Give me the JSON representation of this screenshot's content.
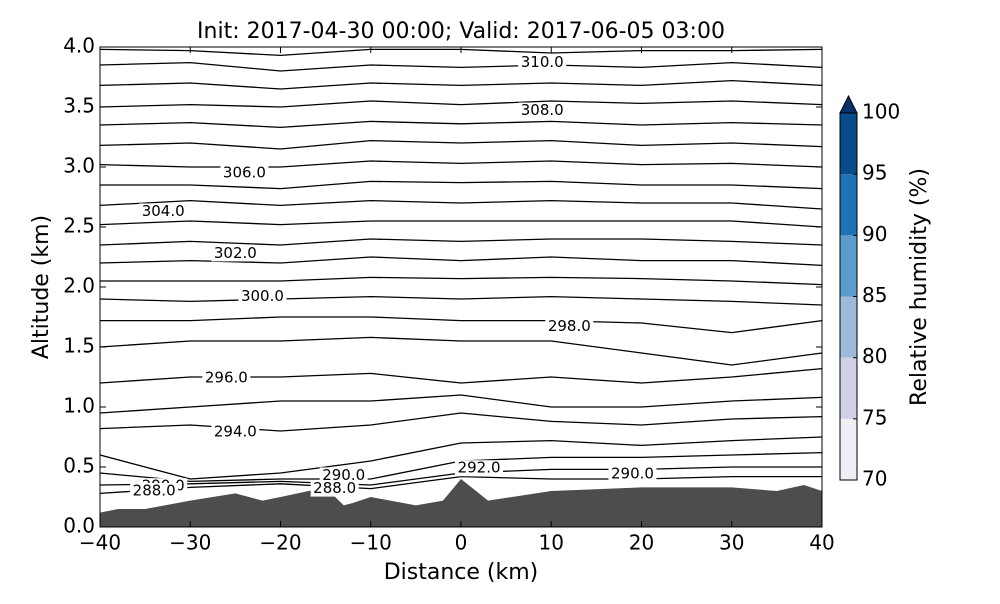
{
  "chart_data": {
    "type": "contour",
    "title": "Init: 2017-04-30 00:00; Valid: 2017-06-05 03:00",
    "xlabel": "Distance (km)",
    "ylabel": "Altitude (km)",
    "xlim": [
      -40,
      40
    ],
    "xticks": [
      {
        "value": -40,
        "label": "−40"
      },
      {
        "value": -30,
        "label": "−30"
      },
      {
        "value": -20,
        "label": "−20"
      },
      {
        "value": -10,
        "label": "−10"
      },
      0,
      10,
      20,
      30,
      40
    ],
    "ylim": [
      0,
      4
    ],
    "yticks": [
      {
        "value": 0,
        "label": "0.0"
      },
      {
        "value": 0.5,
        "label": "0.5"
      },
      {
        "value": 1,
        "label": "1.0"
      },
      {
        "value": 1.5,
        "label": "1.5"
      },
      {
        "value": 2,
        "label": "2.0"
      },
      {
        "value": 2.5,
        "label": "2.5"
      },
      {
        "value": 3,
        "label": "3.0"
      },
      {
        "value": 3.5,
        "label": "3.5"
      },
      {
        "value": 4,
        "label": "4.0"
      }
    ],
    "x": [
      -40,
      -30,
      -20,
      -10,
      0,
      10,
      20,
      30,
      40
    ],
    "contour_color": "#000000",
    "contours": [
      {
        "values": [
          3.98,
          3.97,
          3.93,
          3.98,
          3.98,
          3.95,
          3.97,
          3.97,
          3.98
        ]
      },
      {
        "values": [
          3.85,
          3.87,
          3.8,
          3.85,
          3.83,
          3.85,
          3.83,
          3.87,
          3.83
        ]
      },
      {
        "values": [
          3.68,
          3.7,
          3.65,
          3.7,
          3.68,
          3.7,
          3.68,
          3.72,
          3.68
        ]
      },
      {
        "values": [
          3.5,
          3.52,
          3.5,
          3.55,
          3.52,
          3.55,
          3.53,
          3.55,
          3.52
        ]
      },
      {
        "values": [
          3.35,
          3.37,
          3.33,
          3.38,
          3.36,
          3.38,
          3.35,
          3.37,
          3.35
        ]
      },
      {
        "values": [
          3.18,
          3.2,
          3.15,
          3.22,
          3.2,
          3.22,
          3.18,
          3.2,
          3.17
        ]
      },
      {
        "values": [
          3.02,
          3.0,
          3.0,
          3.05,
          3.03,
          3.05,
          3.02,
          3.03,
          3.0
        ]
      },
      {
        "values": [
          2.85,
          2.85,
          2.82,
          2.88,
          2.87,
          2.88,
          2.85,
          2.85,
          2.82
        ]
      },
      {
        "values": [
          2.68,
          2.72,
          2.68,
          2.72,
          2.7,
          2.72,
          2.7,
          2.7,
          2.65
        ]
      },
      {
        "values": [
          2.52,
          2.55,
          2.52,
          2.55,
          2.55,
          2.55,
          2.55,
          2.55,
          2.5
        ]
      },
      {
        "values": [
          2.35,
          2.38,
          2.35,
          2.4,
          2.38,
          2.4,
          2.4,
          2.38,
          2.35
        ]
      },
      {
        "values": [
          2.2,
          2.22,
          2.2,
          2.25,
          2.22,
          2.25,
          2.22,
          2.22,
          2.18
        ]
      },
      {
        "values": [
          2.05,
          2.05,
          2.05,
          2.08,
          2.07,
          2.08,
          2.07,
          2.05,
          2.02
        ]
      },
      {
        "values": [
          1.9,
          1.88,
          1.9,
          1.92,
          1.9,
          1.92,
          1.9,
          1.88,
          1.85
        ]
      },
      {
        "values": [
          1.72,
          1.72,
          1.75,
          1.75,
          1.72,
          1.72,
          1.7,
          1.62,
          1.72
        ]
      },
      {
        "values": [
          1.5,
          1.55,
          1.55,
          1.58,
          1.55,
          1.55,
          1.45,
          1.35,
          1.45
        ]
      },
      {
        "values": [
          1.2,
          1.25,
          1.25,
          1.28,
          1.2,
          1.25,
          1.2,
          1.25,
          1.32
        ]
      },
      {
        "values": [
          0.95,
          1.0,
          1.05,
          1.05,
          1.1,
          1.0,
          1.0,
          1.05,
          1.08
        ]
      },
      {
        "values": [
          0.82,
          0.85,
          0.8,
          0.85,
          0.95,
          0.88,
          0.85,
          0.9,
          0.92
        ]
      },
      {
        "values": [
          0.6,
          0.4,
          0.45,
          0.55,
          0.7,
          0.72,
          0.68,
          0.72,
          0.75
        ]
      },
      {
        "values": [
          0.45,
          0.38,
          0.4,
          0.4,
          0.55,
          0.58,
          0.58,
          0.6,
          0.62
        ]
      },
      {
        "values": [
          0.35,
          0.36,
          0.38,
          0.35,
          0.45,
          0.48,
          0.48,
          0.5,
          0.5
        ]
      },
      {
        "values": [
          0.28,
          0.33,
          0.36,
          0.32,
          0.42,
          0.4,
          0.4,
          0.42,
          0.42
        ]
      }
    ],
    "contour_labels": [
      {
        "value": 310,
        "label": "310.0",
        "x": 9,
        "y": 3.87
      },
      {
        "value": 308,
        "label": "308.0",
        "x": 9,
        "y": 3.47
      },
      {
        "value": 306,
        "label": "306.0",
        "x": -24,
        "y": 2.95
      },
      {
        "value": 304,
        "label": "304.0",
        "x": -33,
        "y": 2.63
      },
      {
        "value": 302,
        "label": "302.0",
        "x": -25,
        "y": 2.28
      },
      {
        "value": 300,
        "label": "300.0",
        "x": -22,
        "y": 1.92
      },
      {
        "value": 298,
        "label": "298.0",
        "x": 12,
        "y": 1.67
      },
      {
        "value": 296,
        "label": "296.0",
        "x": -26,
        "y": 1.24
      },
      {
        "value": 294,
        "label": "294.0",
        "x": -25,
        "y": 0.79
      },
      {
        "value": 292,
        "label": "292.0",
        "x": 2,
        "y": 0.49
      },
      {
        "value": 290,
        "label": "290.0",
        "x": -13,
        "y": 0.43
      },
      {
        "value": 290,
        "label": "290.0",
        "x": 19,
        "y": 0.44
      },
      {
        "value": 290,
        "label": "290.0",
        "x": -33,
        "y": 0.34
      },
      {
        "value": 288,
        "label": "288.0",
        "x": -34,
        "y": 0.3
      },
      {
        "value": 288,
        "label": "288.0",
        "x": -14,
        "y": 0.32
      }
    ],
    "terrain": {
      "color": "#4d4d4d",
      "x": [
        -40,
        -38,
        -35,
        -30,
        -25,
        -22,
        -20,
        -15,
        -13,
        -12,
        -10,
        -5,
        -2,
        0,
        3,
        10,
        20,
        30,
        35,
        38,
        40
      ],
      "values": [
        0.12,
        0.15,
        0.15,
        0.22,
        0.28,
        0.22,
        0.25,
        0.33,
        0.18,
        0.2,
        0.25,
        0.18,
        0.22,
        0.4,
        0.22,
        0.3,
        0.33,
        0.33,
        0.3,
        0.35,
        0.3
      ]
    },
    "colorbar": {
      "label": "Relative humidity (%)",
      "lim": [
        70,
        100
      ],
      "ticks": [
        70,
        75,
        80,
        85,
        90,
        95,
        100
      ],
      "colors": [
        "#f0eef5",
        "#cfd0e6",
        "#9dbad9",
        "#5c9ccd",
        "#2171b5",
        "#084d8a"
      ],
      "extend_color": "#08306b"
    }
  }
}
